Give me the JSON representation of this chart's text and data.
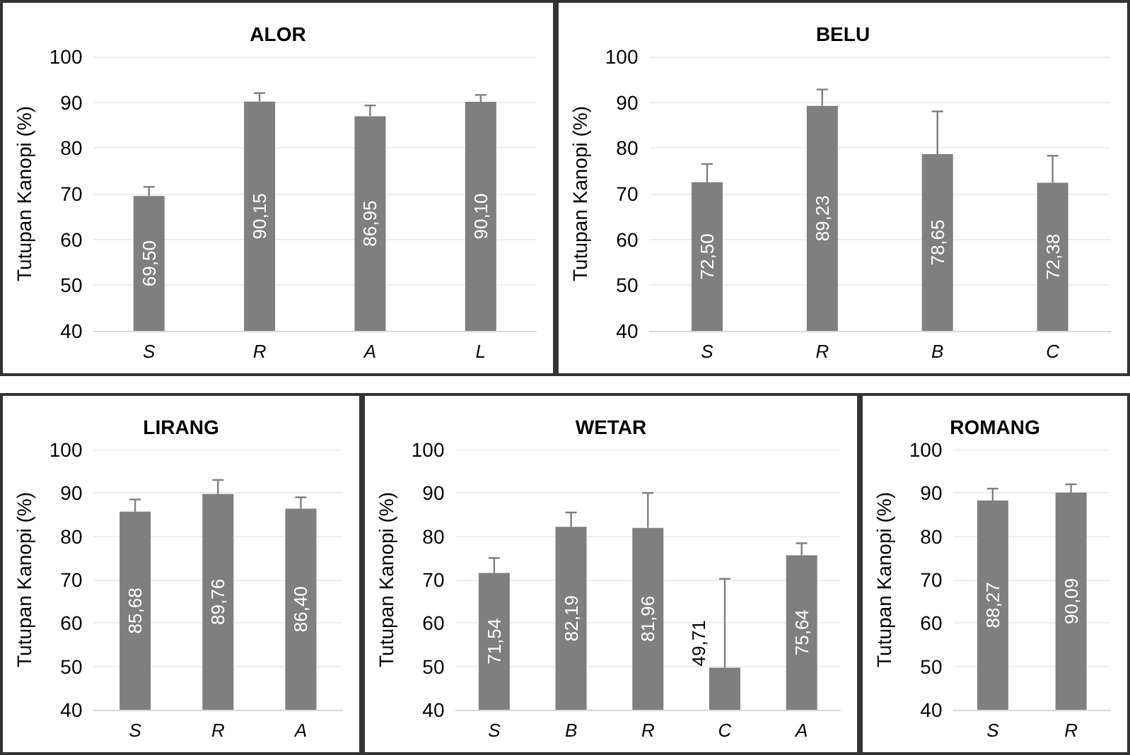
{
  "chart_data": [
    {
      "type": "bar",
      "title": "ALOR",
      "ylabel": "Tutupan Kanopi (%)",
      "categories": [
        "S",
        "R",
        "A",
        "L"
      ],
      "values": [
        69.5,
        90.15,
        86.95,
        90.1
      ],
      "value_labels": [
        "69,50",
        "90,15",
        "86,95",
        "90,10"
      ],
      "errors": [
        [
          69.5,
          71.5
        ],
        [
          90.15,
          92
        ],
        [
          86.95,
          89.3
        ],
        [
          90.1,
          91.6
        ]
      ],
      "color": "#7f7f7f",
      "ylim": [
        40,
        100
      ],
      "yticks": [
        40,
        50,
        60,
        70,
        80,
        90,
        100
      ],
      "grid": "y"
    },
    {
      "type": "bar",
      "title": "BELU",
      "ylabel": "Tutupan Kanopi (%)",
      "categories": [
        "S",
        "R",
        "B",
        "C"
      ],
      "values": [
        72.5,
        89.23,
        78.65,
        72.38
      ],
      "value_labels": [
        "72,50",
        "89,23",
        "78,65",
        "72,38"
      ],
      "errors": [
        [
          72.5,
          76.5
        ],
        [
          89.23,
          92.8
        ],
        [
          78.65,
          88
        ],
        [
          72.38,
          78.3
        ]
      ],
      "color": "#7f7f7f",
      "ylim": [
        40,
        100
      ],
      "yticks": [
        40,
        50,
        60,
        70,
        80,
        90,
        100
      ],
      "grid": "y"
    },
    {
      "type": "bar",
      "title": "LIRANG",
      "ylabel": "Tutupan Kanopi (%)",
      "categories": [
        "S",
        "R",
        "A"
      ],
      "values": [
        85.68,
        89.76,
        86.4
      ],
      "value_labels": [
        "85,68",
        "89,76",
        "86,40"
      ],
      "errors": [
        [
          85.68,
          88.5
        ],
        [
          89.76,
          93
        ],
        [
          86.4,
          89
        ]
      ],
      "color": "#7f7f7f",
      "ylim": [
        40,
        100
      ],
      "yticks": [
        40,
        50,
        60,
        70,
        80,
        90,
        100
      ],
      "grid": "y"
    },
    {
      "type": "bar",
      "title": "WETAR",
      "ylabel": "Tutupan Kanopi (%)",
      "categories": [
        "S",
        "B",
        "R",
        "C",
        "A"
      ],
      "values": [
        71.54,
        82.19,
        81.96,
        49.71,
        75.64
      ],
      "value_labels": [
        "71,54",
        "82,19",
        "81,96",
        "49,71",
        "75,64"
      ],
      "errors": [
        [
          71.54,
          75
        ],
        [
          82.19,
          85.5
        ],
        [
          81.96,
          90
        ],
        [
          49.71,
          70.2
        ],
        [
          75.64,
          78.4
        ]
      ],
      "color": "#7f7f7f",
      "ylim": [
        40,
        100
      ],
      "yticks": [
        40,
        50,
        60,
        70,
        80,
        90,
        100
      ],
      "grid": "y"
    },
    {
      "type": "bar",
      "title": "ROMANG",
      "ylabel": "Tutupan Kanopi (%)",
      "categories": [
        "S",
        "R"
      ],
      "values": [
        88.27,
        90.09
      ],
      "value_labels": [
        "88,27",
        "90,09"
      ],
      "errors": [
        [
          88.27,
          91
        ],
        [
          90.09,
          92
        ]
      ],
      "color": "#7f7f7f",
      "ylim": [
        40,
        100
      ],
      "yticks": [
        40,
        50,
        60,
        70,
        80,
        90,
        100
      ],
      "grid": "y"
    }
  ]
}
